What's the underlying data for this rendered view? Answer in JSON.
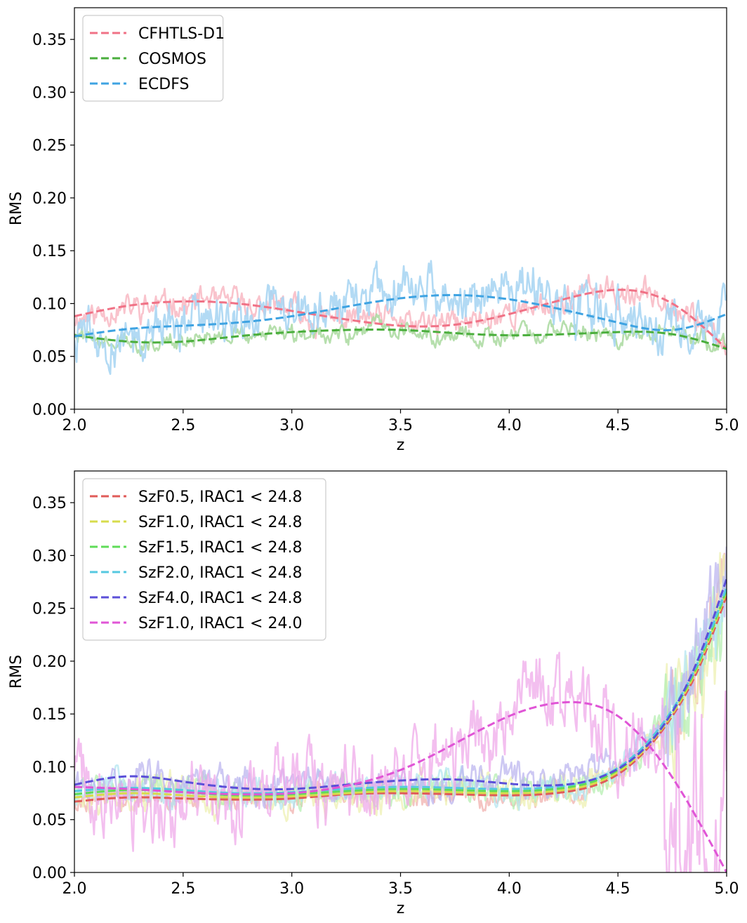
{
  "chart_data": [
    {
      "type": "line",
      "xlabel": "z",
      "ylabel": "RMS",
      "xlim": [
        2.0,
        5.0
      ],
      "ylim": [
        0.0,
        0.38
      ],
      "xticks": [
        "2.0",
        "2.5",
        "3.0",
        "3.5",
        "4.0",
        "4.5",
        "5.0"
      ],
      "yticks": [
        "0.00",
        "0.05",
        "0.10",
        "0.15",
        "0.20",
        "0.25",
        "0.30",
        "0.35"
      ],
      "legend_position": "top-left",
      "series": [
        {
          "name": "CFHTLS-D1",
          "color": "#f07286",
          "noise_color": "#f8bcc6",
          "noise_amp": 0.012,
          "x": [
            2.0,
            2.25,
            2.5,
            2.75,
            3.0,
            3.25,
            3.5,
            3.75,
            4.0,
            4.25,
            4.5,
            4.75,
            5.0
          ],
          "y": [
            0.088,
            0.098,
            0.102,
            0.1,
            0.093,
            0.085,
            0.079,
            0.08,
            0.09,
            0.104,
            0.113,
            0.1,
            0.057
          ]
        },
        {
          "name": "COSMOS",
          "color": "#4aae3c",
          "noise_color": "#aedba4",
          "noise_amp": 0.008,
          "x": [
            2.0,
            2.25,
            2.5,
            2.75,
            3.0,
            3.25,
            3.5,
            3.75,
            4.0,
            4.25,
            4.5,
            4.75,
            5.0
          ],
          "y": [
            0.07,
            0.064,
            0.064,
            0.069,
            0.073,
            0.075,
            0.075,
            0.072,
            0.07,
            0.071,
            0.073,
            0.071,
            0.057
          ]
        },
        {
          "name": "ECDFS",
          "color": "#3ea3e2",
          "noise_color": "#aad6f3",
          "noise_amp": 0.022,
          "x": [
            2.0,
            2.25,
            2.5,
            2.75,
            3.0,
            3.25,
            3.5,
            3.75,
            4.0,
            4.25,
            4.5,
            4.75,
            5.0
          ],
          "y": [
            0.069,
            0.076,
            0.079,
            0.082,
            0.088,
            0.097,
            0.105,
            0.108,
            0.104,
            0.094,
            0.082,
            0.075,
            0.09
          ]
        }
      ]
    },
    {
      "type": "line",
      "xlabel": "z",
      "ylabel": "RMS",
      "xlim": [
        2.0,
        5.0
      ],
      "ylim": [
        0.0,
        0.38
      ],
      "xticks": [
        "2.0",
        "2.5",
        "3.0",
        "3.5",
        "4.0",
        "4.5",
        "5.0"
      ],
      "yticks": [
        "0.00",
        "0.05",
        "0.10",
        "0.15",
        "0.20",
        "0.25",
        "0.30",
        "0.35"
      ],
      "legend_position": "top-left",
      "series": [
        {
          "name": "SzF0.5, IRAC1 < 24.8",
          "color": "#e05b58",
          "noise_color": "#f0b0ad",
          "noise_amp": 0.01,
          "x": [
            2.0,
            2.25,
            2.5,
            2.75,
            3.0,
            3.25,
            3.5,
            3.75,
            4.0,
            4.25,
            4.5,
            4.75,
            4.875,
            5.0
          ],
          "y": [
            0.067,
            0.071,
            0.07,
            0.069,
            0.07,
            0.074,
            0.075,
            0.074,
            0.073,
            0.076,
            0.093,
            0.148,
            0.195,
            0.262
          ]
        },
        {
          "name": "SzF1.0, IRAC1 < 24.8",
          "color": "#d7dc4c",
          "noise_color": "#eef0b2",
          "noise_amp": 0.014,
          "x": [
            2.0,
            2.25,
            2.5,
            2.75,
            3.0,
            3.25,
            3.5,
            3.75,
            4.0,
            4.25,
            4.5,
            4.75,
            4.875,
            5.0
          ],
          "y": [
            0.071,
            0.075,
            0.073,
            0.071,
            0.072,
            0.075,
            0.077,
            0.076,
            0.075,
            0.078,
            0.095,
            0.15,
            0.198,
            0.266
          ]
        },
        {
          "name": "SzF1.5, IRAC1 < 24.8",
          "color": "#5fdc58",
          "noise_color": "#b6efb2",
          "noise_amp": 0.012,
          "x": [
            2.0,
            2.25,
            2.5,
            2.75,
            3.0,
            3.25,
            3.5,
            3.75,
            4.0,
            4.25,
            4.5,
            4.75,
            4.875,
            5.0
          ],
          "y": [
            0.074,
            0.078,
            0.076,
            0.073,
            0.074,
            0.077,
            0.079,
            0.078,
            0.077,
            0.08,
            0.097,
            0.152,
            0.2,
            0.268
          ]
        },
        {
          "name": "SzF2.0, IRAC1 < 24.8",
          "color": "#55c8e0",
          "noise_color": "#b3e6f0",
          "noise_amp": 0.012,
          "x": [
            2.0,
            2.25,
            2.5,
            2.75,
            3.0,
            3.25,
            3.5,
            3.75,
            4.0,
            4.25,
            4.5,
            4.75,
            4.875,
            5.0
          ],
          "y": [
            0.077,
            0.08,
            0.078,
            0.075,
            0.076,
            0.079,
            0.081,
            0.08,
            0.079,
            0.082,
            0.099,
            0.154,
            0.202,
            0.27
          ]
        },
        {
          "name": "SzF4.0, IRAC1 < 24.8",
          "color": "#5b4fd8",
          "noise_color": "#bcb6ef",
          "noise_amp": 0.014,
          "x": [
            2.0,
            2.25,
            2.5,
            2.75,
            3.0,
            3.25,
            3.5,
            3.75,
            4.0,
            4.25,
            4.5,
            4.75,
            4.875,
            5.0
          ],
          "y": [
            0.083,
            0.091,
            0.086,
            0.08,
            0.079,
            0.083,
            0.087,
            0.088,
            0.084,
            0.083,
            0.098,
            0.152,
            0.205,
            0.278
          ]
        },
        {
          "name": "SzF1.0, IRAC1 < 24.0",
          "color": "#e055d6",
          "noise_color": "#efa9ea",
          "noise_amp": 0.035,
          "x": [
            2.0,
            2.25,
            2.5,
            2.75,
            3.0,
            3.25,
            3.5,
            3.75,
            4.0,
            4.25,
            4.5,
            4.75,
            5.0
          ],
          "y": [
            0.081,
            0.079,
            0.076,
            0.074,
            0.075,
            0.082,
            0.097,
            0.122,
            0.148,
            0.161,
            0.148,
            0.09,
            0.0
          ]
        }
      ]
    }
  ]
}
